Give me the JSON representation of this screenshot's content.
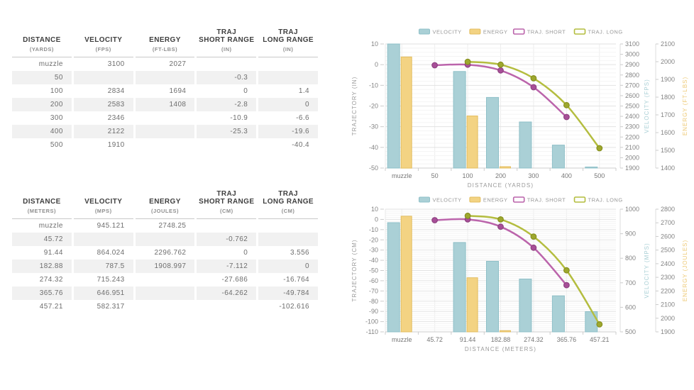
{
  "colors": {
    "velocity": {
      "fill": "#aad0d6",
      "stroke": "#8fc0c8",
      "axis_label": "#a9cfd5"
    },
    "energy": {
      "fill": "#f3d383",
      "stroke": "#e3bd5f",
      "axis_label": "#eeca77"
    },
    "traj_short": {
      "line": "#bb64ab",
      "marker": "#a74f98",
      "marker_stroke": "#8e4180"
    },
    "traj_long": {
      "line": "#b4bd3f",
      "marker": "#9ea82e",
      "marker_stroke": "#87901f"
    },
    "grid_major": "#e2e2e2",
    "grid_minor": "#f4f4f4",
    "grid_vert": "#ededed",
    "axis_line": "#cccccc",
    "tick_text": "#848484",
    "category_text": "#777777",
    "axis_title_text": "#9a9a9a",
    "legend_text": "#999999"
  },
  "tables": [
    {
      "id": "imperial",
      "columns": [
        {
          "label": [
            "DISTANCE"
          ],
          "unit": "(YARDS)"
        },
        {
          "label": [
            "VELOCITY"
          ],
          "unit": "(FPS)"
        },
        {
          "label": [
            "ENERGY"
          ],
          "unit": "(FT-LBS)"
        },
        {
          "label": [
            "TRAJ",
            "SHORT RANGE"
          ],
          "unit": "(IN)"
        },
        {
          "label": [
            "TRAJ",
            "LONG RANGE"
          ],
          "unit": "(IN)"
        }
      ],
      "rows": [
        [
          "muzzle",
          "3100",
          "2027",
          "",
          ""
        ],
        [
          "50",
          "",
          "",
          "-0.3",
          ""
        ],
        [
          "100",
          "2834",
          "1694",
          "0",
          "1.4"
        ],
        [
          "200",
          "2583",
          "1408",
          "-2.8",
          "0"
        ],
        [
          "300",
          "2346",
          "",
          "-10.9",
          "-6.6"
        ],
        [
          "400",
          "2122",
          "",
          "-25.3",
          "-19.6"
        ],
        [
          "500",
          "1910",
          "",
          "",
          "-40.4"
        ]
      ]
    },
    {
      "id": "metric",
      "columns": [
        {
          "label": [
            "DISTANCE"
          ],
          "unit": "(METERS)"
        },
        {
          "label": [
            "VELOCITY"
          ],
          "unit": "(MPS)"
        },
        {
          "label": [
            "ENERGY"
          ],
          "unit": "(JOULES)"
        },
        {
          "label": [
            "TRAJ",
            "SHORT RANGE"
          ],
          "unit": "(CM)"
        },
        {
          "label": [
            "TRAJ",
            "LONG RANGE"
          ],
          "unit": "(CM)"
        }
      ],
      "rows": [
        [
          "muzzle",
          "945.121",
          "2748.25",
          "",
          ""
        ],
        [
          "45.72",
          "",
          "",
          "-0.762",
          ""
        ],
        [
          "91.44",
          "864.024",
          "2296.762",
          "0",
          "3.556"
        ],
        [
          "182.88",
          "787.5",
          "1908.997",
          "-7.112",
          "0"
        ],
        [
          "274.32",
          "715.243",
          "",
          "-27.686",
          "-16.764"
        ],
        [
          "365.76",
          "646.951",
          "",
          "-64.262",
          "-49.784"
        ],
        [
          "457.21",
          "582.317",
          "",
          "",
          "-102.616"
        ]
      ]
    }
  ],
  "chart_data": [
    {
      "type": "bar",
      "title": "",
      "categories": [
        "muzzle",
        "50",
        "100",
        "200",
        "300",
        "400",
        "500"
      ],
      "xlabel": "DISTANCE (YARDS)",
      "grid": true,
      "legend_position": "top",
      "axes": {
        "trajectory": {
          "label": "TRAJECTORY (IN)",
          "min": -50,
          "max": 10,
          "step": 10
        },
        "velocity": {
          "label": "VELOCITY (FPS)",
          "min": 1900,
          "max": 3100,
          "step": 100
        },
        "energy": {
          "label": "ENERGY (FT-LBS)",
          "min": 1400,
          "max": 2100,
          "step": 100
        }
      },
      "series": [
        {
          "name": "VELOCITY",
          "key": "velocity",
          "type": "bar",
          "axis": "velocity",
          "values": [
            3100,
            null,
            2834,
            2583,
            2346,
            2122,
            1910
          ]
        },
        {
          "name": "ENERGY",
          "key": "energy",
          "type": "bar",
          "axis": "energy",
          "values": [
            2027,
            null,
            1694,
            1408,
            null,
            null,
            null
          ]
        },
        {
          "name": "TRAJ. SHORT",
          "key": "traj_short",
          "type": "line",
          "axis": "trajectory",
          "values": [
            null,
            -0.3,
            0,
            -2.8,
            -10.9,
            -25.3,
            null
          ]
        },
        {
          "name": "TRAJ. LONG",
          "key": "traj_long",
          "type": "line",
          "axis": "trajectory",
          "values": [
            null,
            null,
            1.4,
            0,
            -6.6,
            -19.6,
            -40.4
          ]
        }
      ]
    },
    {
      "type": "bar",
      "title": "",
      "categories": [
        "muzzle",
        "45.72",
        "91.44",
        "182.88",
        "274.32",
        "365.76",
        "457.21"
      ],
      "xlabel": "DISTANCE (METERS)",
      "grid": true,
      "legend_position": "top",
      "axes": {
        "trajectory": {
          "label": "TRAJECTORY (CM)",
          "min": -110,
          "max": 10,
          "step": 10
        },
        "velocity": {
          "label": "VELOCITY (MPS)",
          "min": 500,
          "max": 1000,
          "step": 100
        },
        "energy": {
          "label": "ENERGY (JOULES)",
          "min": 1900,
          "max": 2800,
          "step": 100
        }
      },
      "series": [
        {
          "name": "VELOCITY",
          "key": "velocity",
          "type": "bar",
          "axis": "velocity",
          "values": [
            945.121,
            null,
            864.024,
            787.5,
            715.243,
            646.951,
            582.317
          ]
        },
        {
          "name": "ENERGY",
          "key": "energy",
          "type": "bar",
          "axis": "energy",
          "values": [
            2748.25,
            null,
            2296.762,
            1908.997,
            null,
            null,
            null
          ]
        },
        {
          "name": "TRAJ. SHORT",
          "key": "traj_short",
          "type": "line",
          "axis": "trajectory",
          "values": [
            null,
            -0.762,
            0,
            -7.112,
            -27.686,
            -64.262,
            null
          ]
        },
        {
          "name": "TRAJ. LONG",
          "key": "traj_long",
          "type": "line",
          "axis": "trajectory",
          "values": [
            null,
            null,
            3.556,
            0,
            -16.764,
            -49.784,
            -102.616
          ]
        }
      ]
    }
  ]
}
